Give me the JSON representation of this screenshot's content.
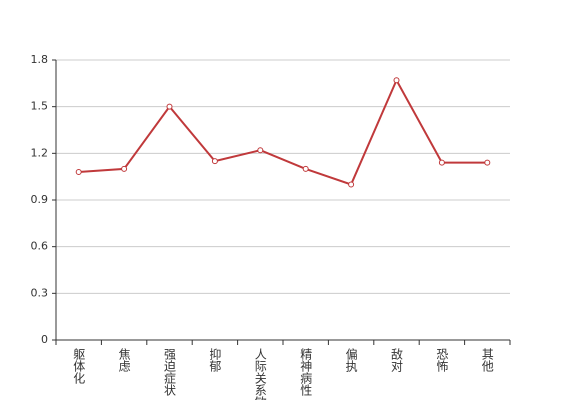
{
  "chart_data": {
    "type": "line",
    "categories": [
      "躯体化",
      "焦虑",
      "强迫症状",
      "抑郁",
      "人际关系敏感",
      "精神病性",
      "偏执",
      "敌对",
      "恐怖",
      "其他"
    ],
    "values": [
      1.08,
      1.1,
      1.5,
      1.15,
      1.22,
      1.1,
      1.0,
      1.67,
      1.14,
      1.14
    ],
    "color": "#c0393b",
    "ylim": [
      0,
      1.8
    ],
    "yticks": [
      0,
      0.3,
      0.6,
      0.9,
      1.2,
      1.5,
      1.8
    ],
    "grid": true
  }
}
